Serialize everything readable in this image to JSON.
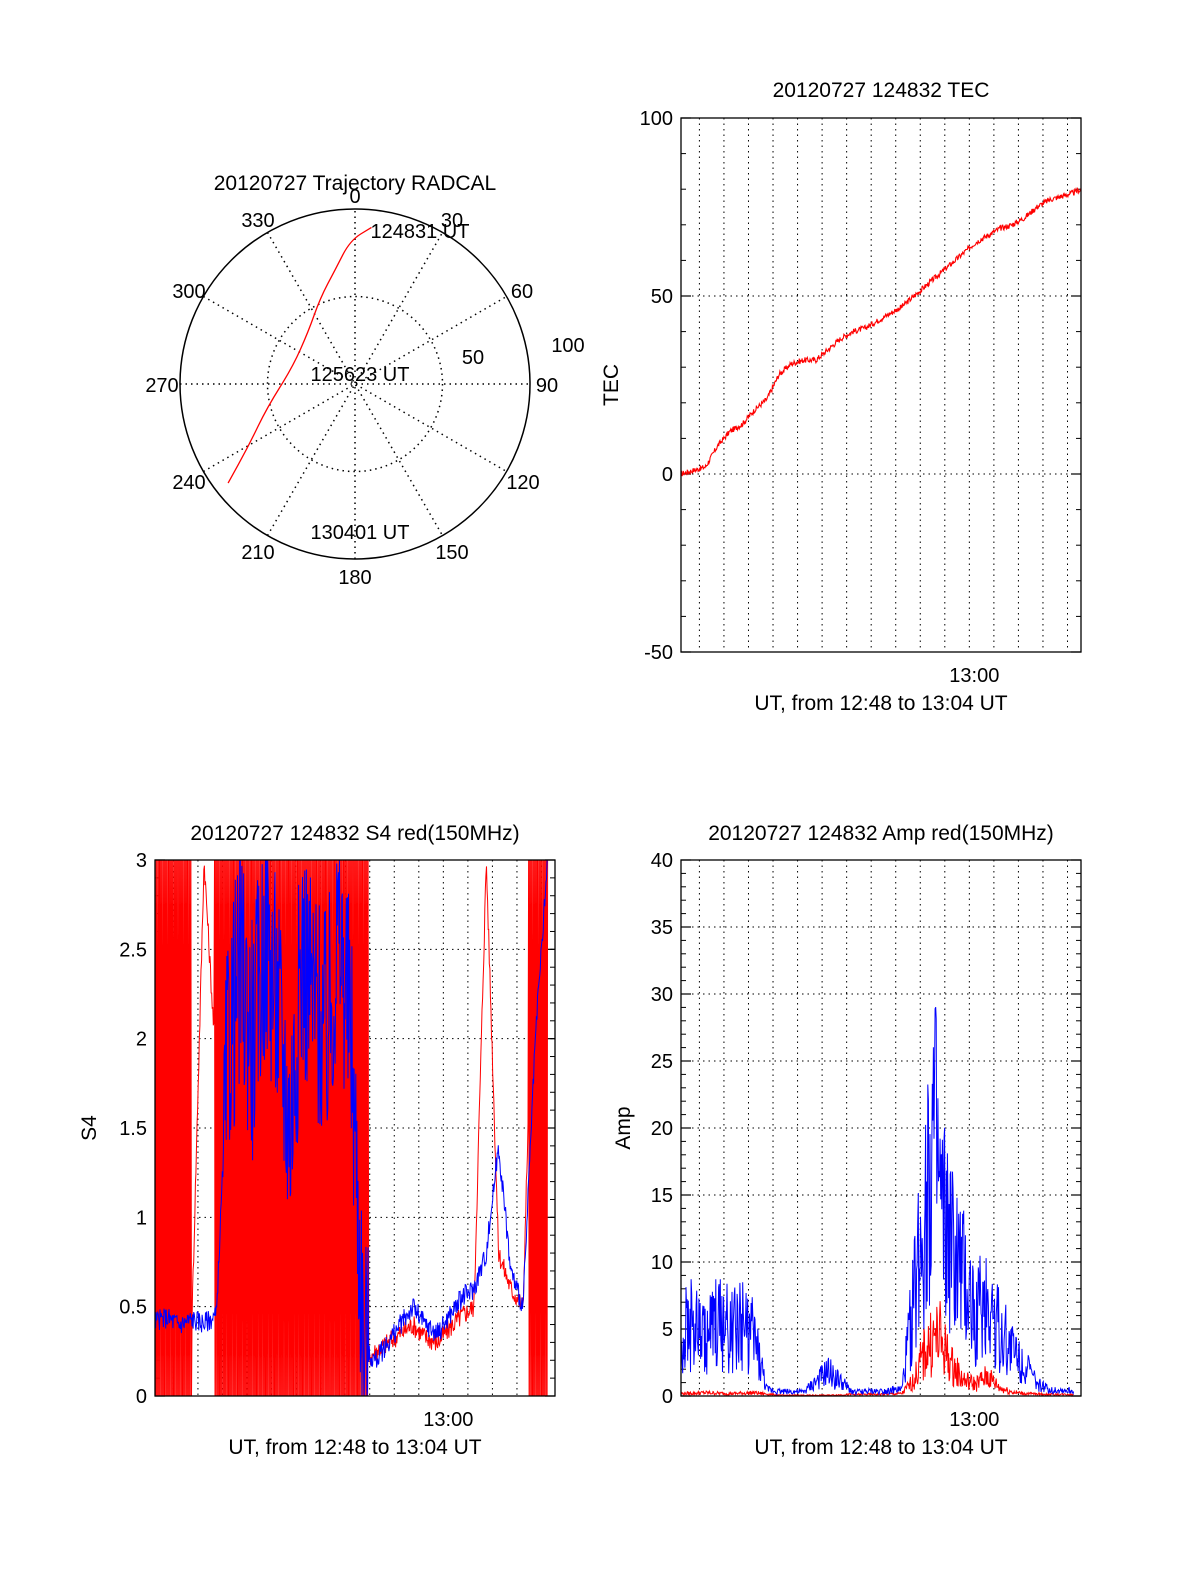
{
  "colors": {
    "red": "#ff0000",
    "blue": "#0000ff",
    "axis": "#000000",
    "grid": "#000000"
  },
  "chart_data": [
    {
      "type": "polar",
      "title": "20120727 Trajectory RADCAL",
      "azimuth_labels": [
        "0",
        "30",
        "60",
        "90",
        "120",
        "150",
        "180",
        "210",
        "240",
        "270",
        "300",
        "330"
      ],
      "radius_labels": [
        "50",
        "100"
      ],
      "rlim": [
        0,
        100
      ],
      "series": [
        {
          "color": "red",
          "points": [
            [
              6,
              90
            ],
            [
              358,
              82
            ],
            [
              350,
              66
            ],
            [
              338,
              53
            ],
            [
              318,
              40
            ],
            [
              285,
              37
            ],
            [
              255,
              52
            ],
            [
              240,
              70
            ],
            [
              232,
              92
            ]
          ]
        }
      ],
      "annotations": [
        {
          "text": "124831 UT",
          "at": [
            6,
            90
          ]
        },
        {
          "text": "125623 UT",
          "at": [
            270,
            35
          ]
        },
        {
          "text": "130401 UT",
          "at": [
            232,
            92
          ]
        }
      ]
    },
    {
      "type": "line",
      "title": "20120727 124832 TEC",
      "xlabel": "UT, from 12:48 to 13:04 UT",
      "ylabel": "TEC",
      "xtick_label": "13:00",
      "ylim": [
        -50,
        100
      ],
      "yticks": [
        -50,
        0,
        50,
        100
      ],
      "series": [
        {
          "color": "red",
          "x": [
            0,
            0.5,
            1,
            1.5,
            2,
            2.5,
            3,
            3.5,
            4,
            4.5,
            5,
            5.5,
            6,
            6.5,
            7,
            7.5,
            8,
            8.5,
            9,
            9.5,
            10,
            10.5,
            11,
            11.5,
            12,
            12.5,
            13,
            13.5,
            14,
            14.5,
            15,
            15.5,
            16,
            16.3
          ],
          "y": [
            0,
            1,
            2,
            8,
            12,
            14,
            18,
            21,
            28,
            31,
            32,
            32,
            35,
            38,
            40,
            41,
            43,
            45,
            47,
            50,
            53,
            56,
            59,
            62,
            65,
            67,
            69,
            70,
            72,
            75,
            77,
            78,
            79,
            80
          ]
        }
      ]
    },
    {
      "type": "line",
      "title": "20120727 124832 S4 red(150MHz)",
      "xlabel": "UT, from 12:48 to 13:04 UT",
      "ylabel": "S4",
      "xtick_label": "13:00",
      "ylim": [
        0,
        3
      ],
      "yticks": [
        "0",
        "0.5",
        "1",
        "1.5",
        "2",
        "2.5",
        "3"
      ],
      "series": [
        {
          "color": "red",
          "x": [
            0,
            0.5,
            1,
            1.5,
            2,
            2.5,
            3,
            3.5,
            4,
            4.5,
            5,
            5.5,
            6,
            6.5,
            7,
            7.5,
            8,
            8.5,
            9,
            9.5,
            10,
            10.5,
            11,
            11.5,
            12,
            12.5,
            13,
            13.5,
            14,
            14.5,
            15,
            15.5,
            16
          ],
          "y": [
            3,
            0.4,
            3,
            0.4,
            3,
            1.8,
            2.3,
            2.0,
            2.4,
            2.2,
            1.4,
            2.1,
            2.5,
            1.6,
            2.0,
            2.6,
            2.2,
            0.2,
            0.25,
            0.3,
            0.35,
            0.4,
            0.33,
            0.3,
            0.38,
            0.45,
            0.5,
            3.0,
            0.8,
            0.6,
            0.5,
            3,
            3
          ]
        },
        {
          "color": "blue",
          "x": [
            0,
            0.5,
            1,
            1.5,
            2,
            2.5,
            3,
            3.5,
            4,
            4.5,
            5,
            5.5,
            6,
            6.5,
            7,
            7.5,
            8,
            8.5,
            9,
            9.5,
            10,
            10.5,
            11,
            11.5,
            12,
            12.5,
            13,
            13.5,
            14,
            14.5,
            15,
            15.5,
            16
          ],
          "y": [
            0.42,
            0.44,
            0.4,
            0.43,
            0.41,
            0.45,
            2.0,
            2.4,
            2.0,
            2.6,
            2.2,
            1.5,
            2.5,
            2.2,
            2.0,
            2.6,
            2.0,
            0.25,
            0.2,
            0.3,
            0.4,
            0.5,
            0.4,
            0.35,
            0.45,
            0.55,
            0.6,
            0.8,
            1.4,
            0.7,
            0.5,
            2.0,
            3.0
          ]
        }
      ]
    },
    {
      "type": "line",
      "title": "20120727 124832 Amp red(150MHz)",
      "xlabel": "UT, from 12:48 to 13:04 UT",
      "ylabel": "Amp",
      "xtick_label": "13:00",
      "ylim": [
        0,
        40
      ],
      "yticks": [
        0,
        5,
        10,
        15,
        20,
        25,
        30,
        35,
        40
      ],
      "series": [
        {
          "color": "red",
          "x": [
            0,
            1,
            2,
            3,
            4,
            5,
            6,
            7,
            8,
            9,
            9.5,
            10,
            10.5,
            11,
            11.5,
            12,
            12.5,
            13,
            13.5,
            14,
            15,
            16
          ],
          "y": [
            0.3,
            0.4,
            0.3,
            0.4,
            0.1,
            0.1,
            0.1,
            0.2,
            0.2,
            0.3,
            2.0,
            6.0,
            7.5,
            4.0,
            2.0,
            1.5,
            2.5,
            1.0,
            0.5,
            0.3,
            0.2,
            0.2
          ]
        },
        {
          "color": "blue",
          "x": [
            0,
            0.5,
            1,
            1.5,
            2,
            2.5,
            3,
            3.5,
            4,
            5,
            6,
            7,
            8,
            9,
            9.5,
            10,
            10.3,
            10.6,
            11,
            11.5,
            12,
            12.5,
            13,
            13.5,
            14,
            14.5,
            15,
            16
          ],
          "y": [
            8.0,
            9.0,
            7.0,
            9.5,
            8.0,
            9.0,
            7.0,
            0.8,
            0.6,
            0.5,
            3.0,
            0.5,
            0.6,
            0.8,
            12.0,
            26.0,
            32.0,
            22.0,
            18.0,
            14.0,
            10.0,
            12.0,
            8.0,
            6.0,
            4.0,
            1.5,
            0.8,
            0.6
          ]
        }
      ]
    }
  ]
}
